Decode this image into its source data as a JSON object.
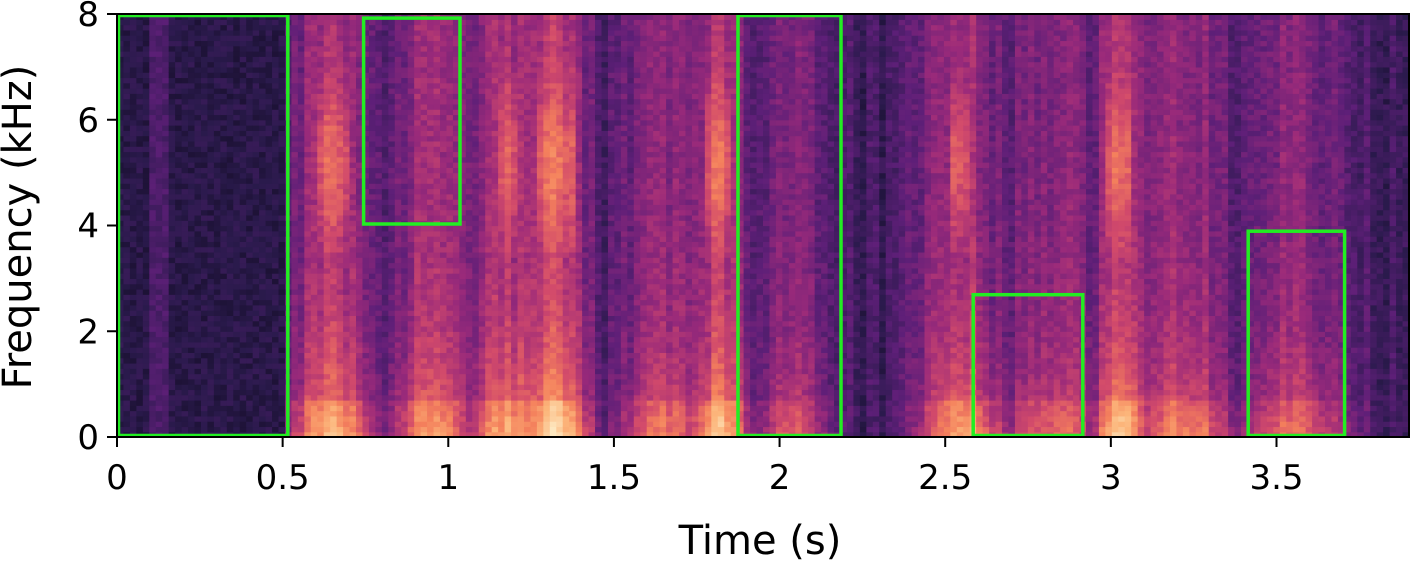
{
  "chart_data": {
    "type": "heatmap",
    "title": "",
    "xlabel": "Time (s)",
    "ylabel": "Frequency (kHz)",
    "xlim": [
      0,
      3.9
    ],
    "ylim": [
      0,
      8
    ],
    "xticks": [
      0,
      0.5,
      1,
      1.5,
      2,
      2.5,
      3,
      3.5
    ],
    "xtick_labels": [
      "0",
      "0.5",
      "1",
      "1.5",
      "2",
      "2.5",
      "3",
      "3.5"
    ],
    "yticks": [
      0,
      2,
      4,
      6,
      8
    ],
    "ytick_labels": [
      "0",
      "2",
      "4",
      "6",
      "8"
    ],
    "colormap": [
      "#000004",
      "#2a1a4c",
      "#5e1f78",
      "#9a2a7a",
      "#d24a6b",
      "#f4805c",
      "#fcb57a",
      "#fde7bf"
    ],
    "box_color": "#22ee22",
    "highlight_boxes": [
      {
        "t_start": 0.0,
        "t_end": 0.52,
        "f_low": 0.0,
        "f_high": 8.0
      },
      {
        "t_start": 0.74,
        "t_end": 1.04,
        "f_low": 4.0,
        "f_high": 7.95
      },
      {
        "t_start": 1.87,
        "t_end": 2.19,
        "f_low": 0.0,
        "f_high": 8.0
      },
      {
        "t_start": 2.58,
        "t_end": 2.92,
        "f_low": 0.0,
        "f_high": 2.72
      },
      {
        "t_start": 3.41,
        "t_end": 3.71,
        "f_low": 0.0,
        "f_high": 3.92
      }
    ],
    "speech_segments": [
      {
        "t_start": 0.55,
        "t_end": 0.75,
        "strength": 0.85
      },
      {
        "t_start": 0.85,
        "t_end": 1.05,
        "strength": 0.75
      },
      {
        "t_start": 1.08,
        "t_end": 1.28,
        "strength": 0.8
      },
      {
        "t_start": 1.25,
        "t_end": 1.4,
        "strength": 1.0
      },
      {
        "t_start": 1.55,
        "t_end": 1.75,
        "strength": 0.65
      },
      {
        "t_start": 1.76,
        "t_end": 1.88,
        "strength": 0.9
      },
      {
        "t_start": 1.95,
        "t_end": 2.12,
        "strength": 0.55
      },
      {
        "t_start": 2.45,
        "t_end": 2.65,
        "strength": 0.8
      },
      {
        "t_start": 2.7,
        "t_end": 2.95,
        "strength": 0.6
      },
      {
        "t_start": 2.98,
        "t_end": 3.08,
        "strength": 0.95
      },
      {
        "t_start": 3.1,
        "t_end": 3.35,
        "strength": 0.7
      },
      {
        "t_start": 3.4,
        "t_end": 3.7,
        "strength": 0.6
      }
    ]
  }
}
